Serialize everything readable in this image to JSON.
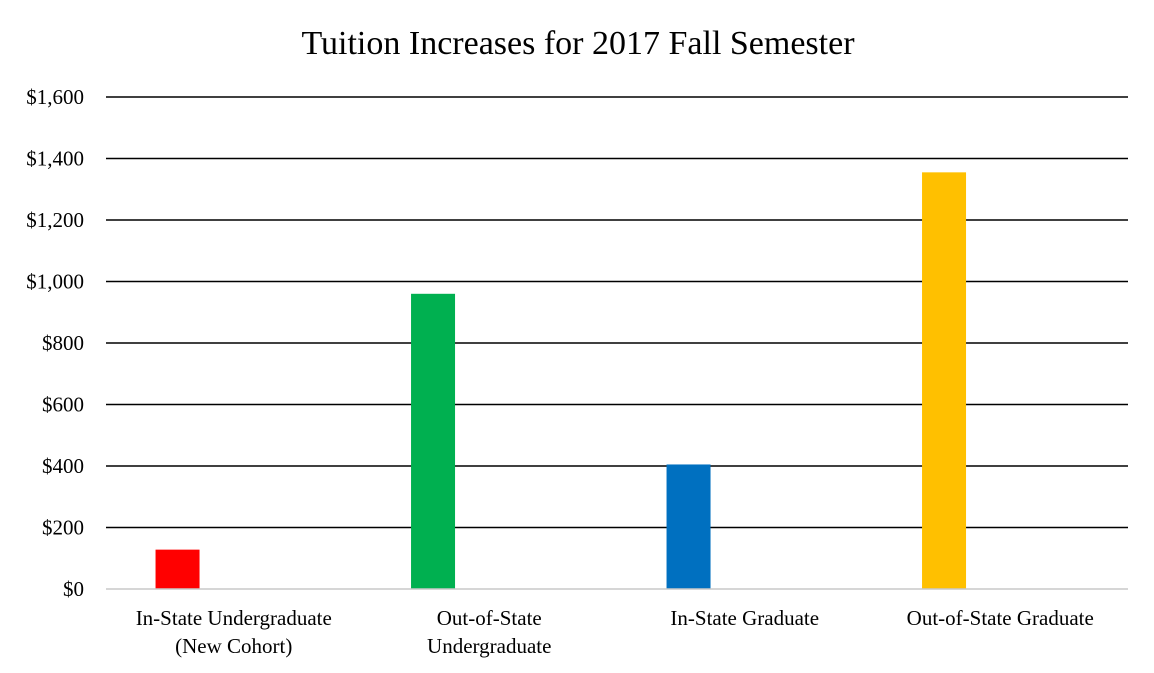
{
  "chart_data": {
    "type": "bar",
    "title": "Tuition Increases for 2017 Fall Semester",
    "xlabel": "",
    "ylabel": "",
    "categories": [
      [
        "In-State Undergraduate",
        "(New Cohort)"
      ],
      [
        "Out-of-State",
        "Undergraduate"
      ],
      [
        "In-State Graduate"
      ],
      [
        "Out-of-State Graduate"
      ]
    ],
    "values": [
      128,
      960,
      405,
      1355
    ],
    "colors": [
      "#ff0000",
      "#00b050",
      "#0070c0",
      "#ffc000"
    ],
    "ylim": [
      0,
      1600
    ],
    "yticks": [
      0,
      200,
      400,
      600,
      800,
      1000,
      1200,
      1400,
      1600
    ],
    "ytick_labels": [
      "$0",
      "$200",
      "$400",
      "$600",
      "$800",
      "$1,000",
      "$1,200",
      "$1,400",
      "$1,600"
    ],
    "grid": true,
    "legend": "none"
  }
}
